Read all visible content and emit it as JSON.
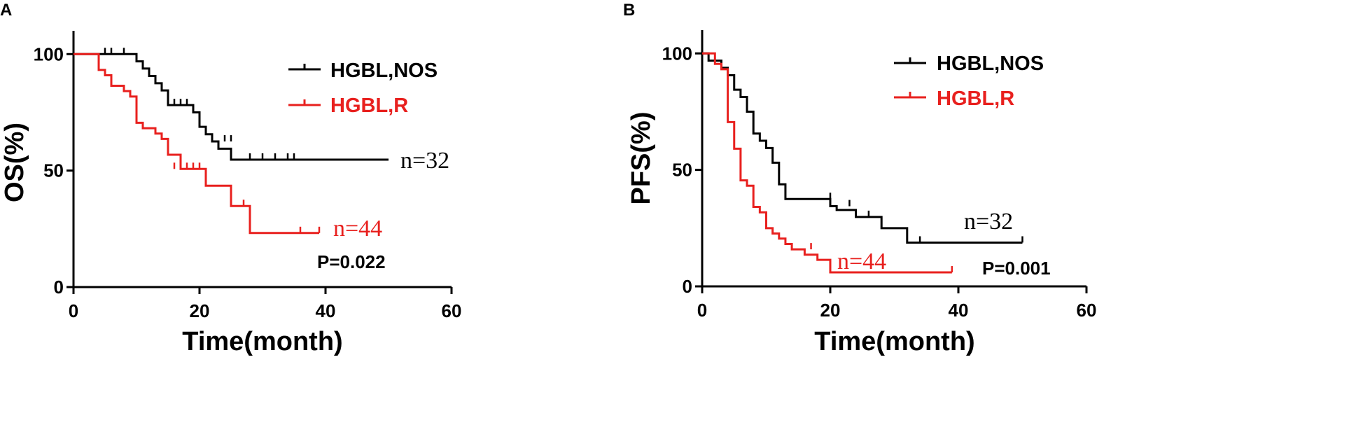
{
  "chart_data": [
    {
      "panel_label": "A",
      "type": "line",
      "subtype": "kaplan-meier-step",
      "xlabel": "Time(month)",
      "ylabel": "OS(%)",
      "xlim": [
        0,
        60
      ],
      "ylim": [
        0,
        110
      ],
      "xticks": [
        "0",
        "20",
        "40",
        "60"
      ],
      "yticks": [
        "0",
        "50",
        "100"
      ],
      "grid": false,
      "legend_placement": "top-right",
      "p_value_text": "P=0.022",
      "series": [
        {
          "name": "HGBL,NOS",
          "color": "#000000",
          "n_label": "n=32",
          "x": [
            0,
            10,
            11,
            12,
            13,
            14,
            15,
            19,
            20,
            21,
            22,
            23,
            25,
            50
          ],
          "y": [
            100,
            96.9,
            93.8,
            90.6,
            87.5,
            84.4,
            78.1,
            75.0,
            68.8,
            65.6,
            62.5,
            59.4,
            54.7,
            54.7
          ],
          "censor_x": [
            5,
            6,
            8,
            16,
            17,
            18,
            24,
            25,
            28,
            30,
            32,
            34,
            35
          ],
          "censor_y": [
            100,
            100,
            100,
            78.1,
            78.1,
            78.1,
            62.5,
            62.5,
            54.7,
            54.7,
            54.7,
            54.7,
            54.7
          ]
        },
        {
          "name": "HGBL,R",
          "color": "#e8201e",
          "n_label": "n=44",
          "x": [
            0,
            4,
            5,
            6,
            8,
            9,
            10,
            11,
            13,
            14,
            15,
            17,
            18,
            21,
            25,
            28,
            39
          ],
          "y": [
            100,
            93.2,
            90.9,
            86.4,
            84.1,
            81.8,
            70.5,
            68.2,
            65.9,
            63.6,
            56.8,
            50.7,
            50.7,
            43.5,
            34.8,
            23.2,
            23.2
          ],
          "censor_x": [
            16,
            17,
            18,
            19,
            20,
            27,
            36,
            39
          ],
          "censor_y": [
            50.7,
            50.7,
            50.7,
            50.7,
            50.7,
            34.8,
            23.2,
            23.2
          ]
        }
      ]
    },
    {
      "panel_label": "B",
      "type": "line",
      "subtype": "kaplan-meier-step",
      "xlabel": "Time(month)",
      "ylabel": "PFS(%)",
      "xlim": [
        0,
        60
      ],
      "ylim": [
        0,
        110
      ],
      "xticks": [
        "0",
        "20",
        "40",
        "60"
      ],
      "yticks": [
        "0",
        "50",
        "100"
      ],
      "grid": false,
      "legend_placement": "top-right",
      "p_value_text": "P=0.001",
      "series": [
        {
          "name": "HGBL,NOS",
          "color": "#000000",
          "n_label": "n=32",
          "x": [
            0,
            1,
            3,
            4,
            5,
            6,
            7,
            8,
            9,
            10,
            11,
            12,
            13,
            20,
            21,
            24,
            28,
            32,
            50
          ],
          "y": [
            100,
            96.9,
            93.8,
            90.6,
            84.4,
            81.3,
            75.0,
            65.6,
            62.5,
            59.4,
            53.1,
            43.8,
            37.5,
            34.4,
            32.8,
            29.8,
            25.0,
            18.8,
            18.8
          ],
          "censor_x": [
            20,
            23,
            26,
            34,
            50
          ],
          "censor_y": [
            37.5,
            34.4,
            29.8,
            18.8,
            18.8
          ]
        },
        {
          "name": "HGBL,R",
          "color": "#e8201e",
          "n_label": "n=44",
          "x": [
            0,
            2,
            3,
            4,
            5,
            6,
            7,
            8,
            9,
            10,
            11,
            12,
            13,
            14,
            16,
            18,
            20,
            39
          ],
          "y": [
            100,
            95.5,
            93.2,
            70.5,
            59.1,
            45.5,
            43.2,
            34.1,
            31.8,
            25.0,
            22.7,
            20.5,
            18.2,
            15.9,
            13.6,
            11.4,
            6.0,
            6.0
          ],
          "censor_x": [
            17,
            39
          ],
          "censor_y": [
            15.9,
            6.0
          ]
        }
      ]
    }
  ]
}
